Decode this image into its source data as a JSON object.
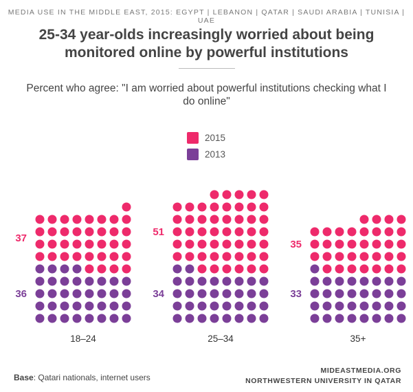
{
  "header": {
    "top_strip": "MEDIA USE IN THE MIDDLE EAST, 2015: EGYPT | LEBANON | QATAR | SAUDI ARABIA | TUNISIA | UAE",
    "title": "25-34 year-olds increasingly worried about being monitored online by powerful institutions",
    "subtitle": "Percent who agree: \"I am worried about powerful institutions checking what I do online\""
  },
  "legend": {
    "items": [
      {
        "label": "2015",
        "color": "#ee2a6b"
      },
      {
        "label": "2013",
        "color": "#7b3f98"
      }
    ]
  },
  "chart_data": {
    "type": "waffle",
    "categories": [
      "18–24",
      "25–34",
      "35+"
    ],
    "series": [
      {
        "name": "2015",
        "values": [
          37,
          51,
          35
        ],
        "color": "#ee2a6b"
      },
      {
        "name": "2013",
        "values": [
          36,
          34,
          33
        ],
        "color": "#7b3f98"
      }
    ]
  },
  "footer": {
    "base_label": "Base",
    "base_text": ": Qatari nationals, internet users",
    "source_line1": "MIDEASTMEDIA.ORG",
    "source_line2": "NORTHWESTERN UNIVERSITY IN QATAR"
  }
}
